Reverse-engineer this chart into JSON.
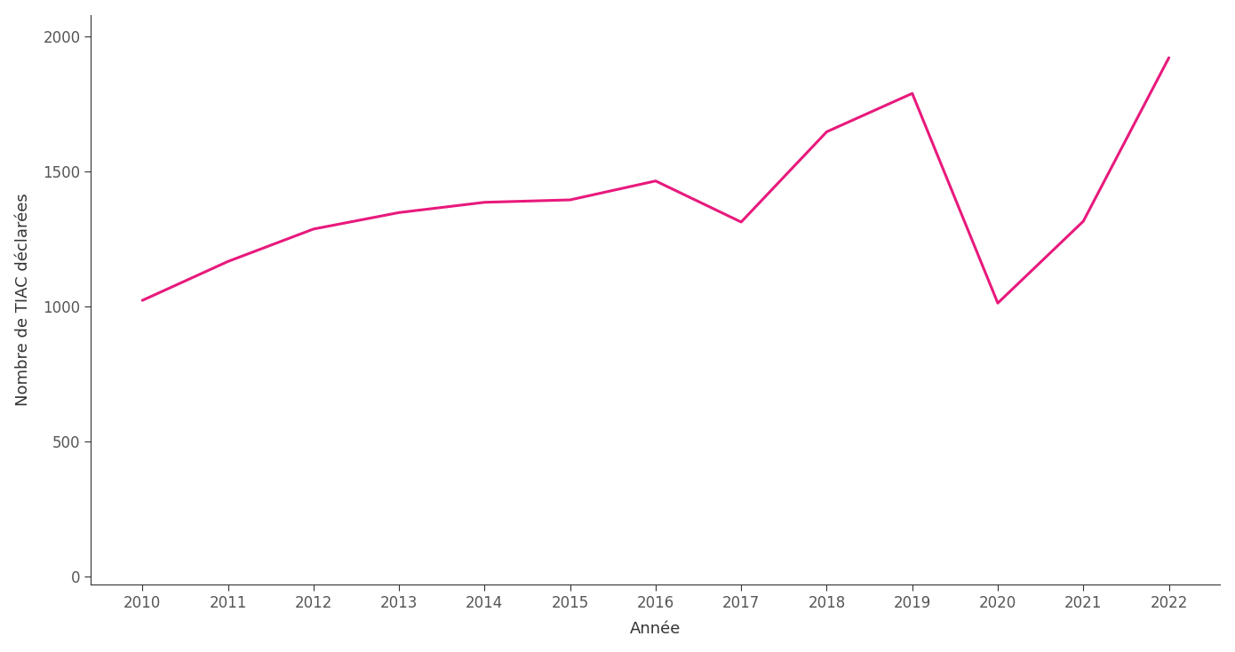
{
  "years": [
    2010,
    2011,
    2012,
    2013,
    2014,
    2015,
    2016,
    2017,
    2018,
    2019,
    2020,
    2021,
    2022
  ],
  "values": [
    1023,
    1167,
    1287,
    1348,
    1386,
    1395,
    1465,
    1313,
    1647,
    1789,
    1013,
    1316,
    1921
  ],
  "line_color": "#E8197C",
  "line_width": 2.2,
  "xlabel": "Année",
  "ylabel": "Nombre de TIAC déclarées",
  "ylim": [
    -30,
    2080
  ],
  "xlim": [
    2009.4,
    2022.6
  ],
  "yticks": [
    0,
    500,
    1000,
    1500,
    2000
  ],
  "background_color": "#ffffff",
  "spine_color": "#333333",
  "tick_color": "#555555",
  "font_color": "#333333",
  "tick_label_fontsize": 12,
  "axis_label_fontsize": 13
}
